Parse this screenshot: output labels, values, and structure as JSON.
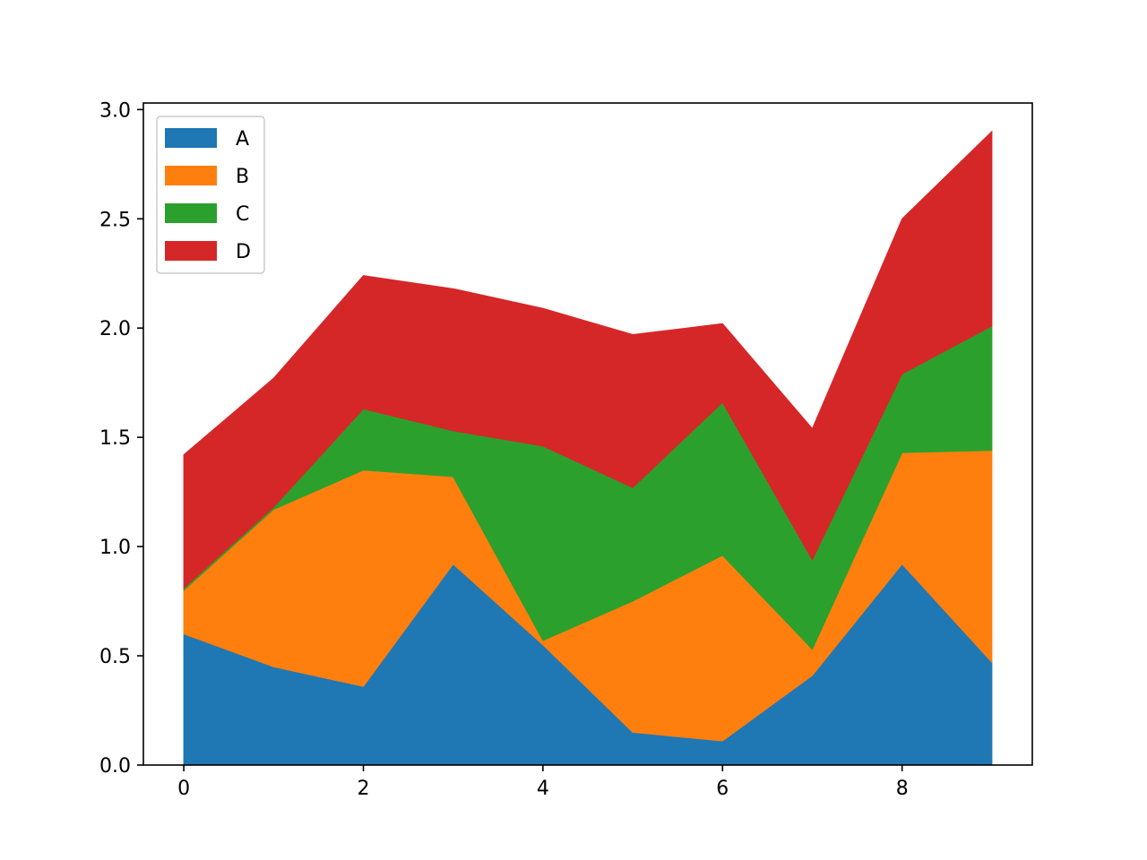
{
  "chart_data": {
    "type": "area",
    "stacked": true,
    "x": [
      0,
      1,
      2,
      3,
      4,
      5,
      6,
      7,
      8,
      9
    ],
    "series": [
      {
        "name": "A",
        "color": "#1f77b4",
        "values": [
          0.6,
          0.45,
          0.36,
          0.92,
          0.55,
          0.15,
          0.11,
          0.41,
          0.92,
          0.47
        ]
      },
      {
        "name": "B",
        "color": "#ff7f0e",
        "values": [
          0.2,
          0.72,
          0.99,
          0.4,
          0.02,
          0.6,
          0.85,
          0.12,
          0.51,
          0.97
        ]
      },
      {
        "name": "C",
        "color": "#2ca02c",
        "values": [
          0.01,
          0.01,
          0.28,
          0.21,
          0.89,
          0.52,
          0.7,
          0.41,
          0.36,
          0.57
        ]
      },
      {
        "name": "D",
        "color": "#d62728",
        "values": [
          0.61,
          0.59,
          0.61,
          0.65,
          0.63,
          0.7,
          0.36,
          0.6,
          0.71,
          0.89
        ]
      }
    ],
    "xlim": [
      -0.45,
      9.45
    ],
    "ylim": [
      0,
      3.03
    ],
    "x_ticks": [
      "0",
      "2",
      "4",
      "6",
      "8"
    ],
    "y_ticks": [
      "0.0",
      "0.5",
      "1.0",
      "1.5",
      "2.0",
      "2.5",
      "3.0"
    ],
    "grid": false,
    "legend_position": "upper-left"
  }
}
